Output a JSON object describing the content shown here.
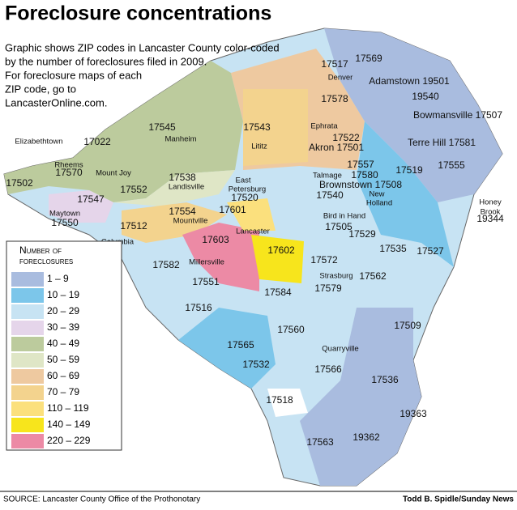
{
  "title": "Foreclosure concentrations",
  "subtitle_lines": [
    "Graphic shows ZIP codes in Lancaster County color-coded",
    "by the number of foreclosures filed in 2009.",
    "For foreclosure maps of each",
    "ZIP code, go to",
    "LancasterOnline.com."
  ],
  "legend": {
    "title_lines": [
      "Number of",
      "foreclosures"
    ],
    "items": [
      {
        "label": "1 – 9",
        "color": "#a9bcdf"
      },
      {
        "label": "10 – 19",
        "color": "#7cc6ea"
      },
      {
        "label": "20 – 29",
        "color": "#c7e3f3"
      },
      {
        "label": "30 – 39",
        "color": "#e5d5ea"
      },
      {
        "label": "40 – 49",
        "color": "#bccb9d"
      },
      {
        "label": "50 – 59",
        "color": "#dfe6c6"
      },
      {
        "label": "60 – 69",
        "color": "#eec9a0"
      },
      {
        "label": "70 – 79",
        "color": "#f3d38e"
      },
      {
        "label": "110 – 119",
        "color": "#fbe07d"
      },
      {
        "label": "140 – 149",
        "color": "#f7e51c"
      },
      {
        "label": "220 – 229",
        "color": "#ec8aa5"
      }
    ]
  },
  "map_labels": [
    "17517",
    "17569",
    "Denver",
    "Adamstown 19501",
    "19540",
    "17578",
    "Bowmansville 17507",
    "17545",
    "17543",
    "Ephrata",
    "17522",
    "Elizabethtown",
    "17022",
    "Manheim",
    "Lititz",
    "Akron 17501",
    "Terre Hill 17581",
    "Rheems",
    "17570",
    "17557",
    "17519",
    "17555",
    "Mount Joy",
    "17538",
    "Landisville",
    "East",
    "Petersburg",
    "17520",
    "Talmage",
    "17580",
    "Brownstown 17508",
    "17502",
    "17552",
    "17540",
    "New",
    "Holland",
    "Honey",
    "Brook",
    "19344",
    "17547",
    "Maytown",
    "17550",
    "17554",
    "Mountville",
    "17601",
    "Bird in Hand",
    "17505",
    "17512",
    "Columbia",
    "Lancaster",
    "17529",
    "17603",
    "17602",
    "17535",
    "17527",
    "17572",
    "17582",
    "Millersville",
    "Strasburg",
    "17562",
    "17551",
    "17579",
    "17584",
    "17516",
    "17509",
    "17560",
    "17565",
    "Quarryville",
    "17532",
    "17566",
    "17536",
    "19363",
    "17518",
    "17563",
    "19362"
  ],
  "source": "SOURCE:  Lancaster County Office of the Prothonotary",
  "credit": "Todd B. Spidle/Sunday News"
}
